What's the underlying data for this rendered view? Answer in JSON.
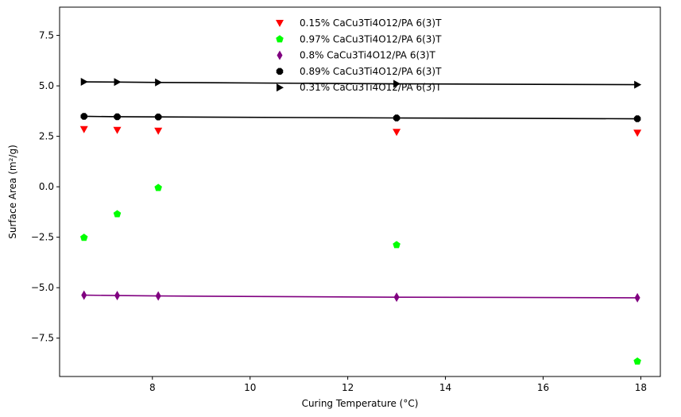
{
  "chart_data": {
    "type": "scatter",
    "xlabel": "Curing Temperature (°C)",
    "ylabel": "Surface Area (m²/g)",
    "xlim": [
      6.1,
      18.4
    ],
    "ylim": [
      -9.4,
      8.9
    ],
    "xticks": [
      8,
      10,
      12,
      14,
      16,
      18
    ],
    "yticks": [
      -7.5,
      -5.0,
      -2.5,
      0.0,
      2.5,
      5.0,
      7.5
    ],
    "xtick_labels": [
      "8",
      "10",
      "12",
      "14",
      "16",
      "18"
    ],
    "ytick_labels": [
      "−7.5",
      "−5.0",
      "−2.5",
      "0.0",
      "2.5",
      "5.0",
      "7.5"
    ],
    "grid": false,
    "legend_position": "top-center",
    "series": [
      {
        "name": "0.15% CaCu3Ti4O12/PA 6(3)T",
        "color": "#ff0000",
        "marker": "triangle-down",
        "x": [
          6.6,
          7.28,
          8.12,
          13.0,
          17.93
        ],
        "y": [
          2.85,
          2.81,
          2.77,
          2.71,
          2.67
        ],
        "fit_line": false
      },
      {
        "name": "0.97% CaCu3Ti4O12/PA 6(3)T",
        "color": "#00ff00",
        "marker": "pentagon",
        "x": [
          6.6,
          7.28,
          8.12,
          13.0,
          17.93
        ],
        "y": [
          -2.52,
          -1.35,
          -0.05,
          -2.88,
          -8.65
        ],
        "fit_line": false
      },
      {
        "name": "0.8% CaCu3Ti4O12/PA 6(3)T",
        "color": "#800080",
        "marker": "thin-diamond",
        "x": [
          6.6,
          7.28,
          8.12,
          13.0,
          17.93
        ],
        "y": [
          -5.37,
          -5.39,
          -5.41,
          -5.47,
          -5.5
        ],
        "fit_line": true
      },
      {
        "name": "0.89% CaCu3Ti4O12/PA 6(3)T",
        "color": "#000000",
        "marker": "octagon",
        "x": [
          6.6,
          7.28,
          8.12,
          13.0,
          17.93
        ],
        "y": [
          3.49,
          3.47,
          3.46,
          3.41,
          3.37
        ],
        "fit_line": true
      },
      {
        "name": "0.31% CaCu3Ti4O12/PA 6(3)T",
        "color": "#000000",
        "marker": "triangle-right",
        "x": [
          6.6,
          7.28,
          8.12,
          13.0,
          17.93
        ],
        "y": [
          5.2,
          5.19,
          5.17,
          5.1,
          5.06
        ],
        "fit_line": true
      }
    ]
  }
}
